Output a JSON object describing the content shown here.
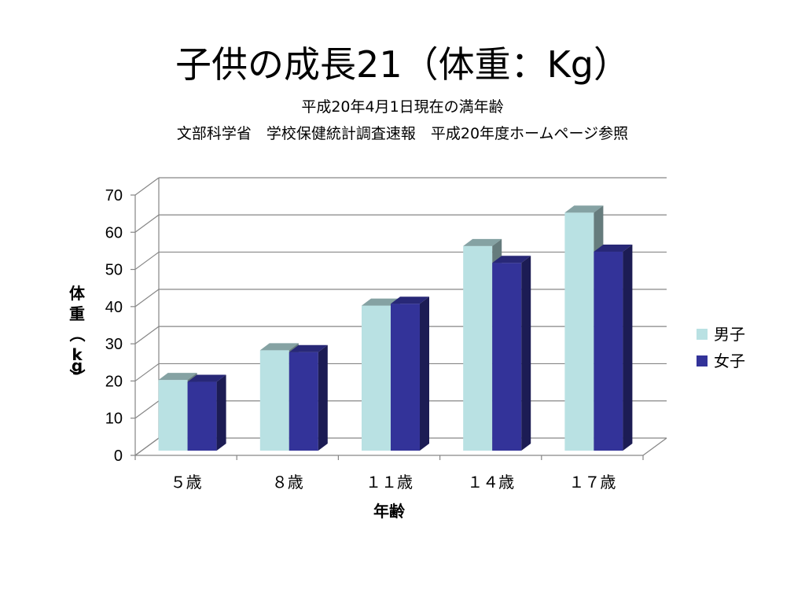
{
  "title": "子供の成長21（体重：Kg）",
  "subtitle_line1": "平成20年4月1日現在の満年齢",
  "subtitle_line2": "文部科学省　学校保健統計調査速報　平成20年度ホームページ参照",
  "chart_data": {
    "type": "bar",
    "title": "子供の成長21（体重：Kg）",
    "xlabel": "年齢",
    "ylabel": "体重（kg）",
    "ylim": [
      0,
      70
    ],
    "yticks": [
      0,
      10,
      20,
      30,
      40,
      50,
      60,
      70
    ],
    "categories": [
      "５歳",
      "８歳",
      "１１歳",
      "１４歳",
      "１７歳"
    ],
    "series": [
      {
        "name": "男子",
        "values": [
          19,
          27,
          39,
          55,
          64
        ],
        "color": "#b9e1e3"
      },
      {
        "name": "女子",
        "values": [
          18.5,
          26.5,
          39.5,
          50.5,
          53.5
        ],
        "color": "#333399"
      }
    ],
    "grid": true,
    "legend": "right"
  }
}
